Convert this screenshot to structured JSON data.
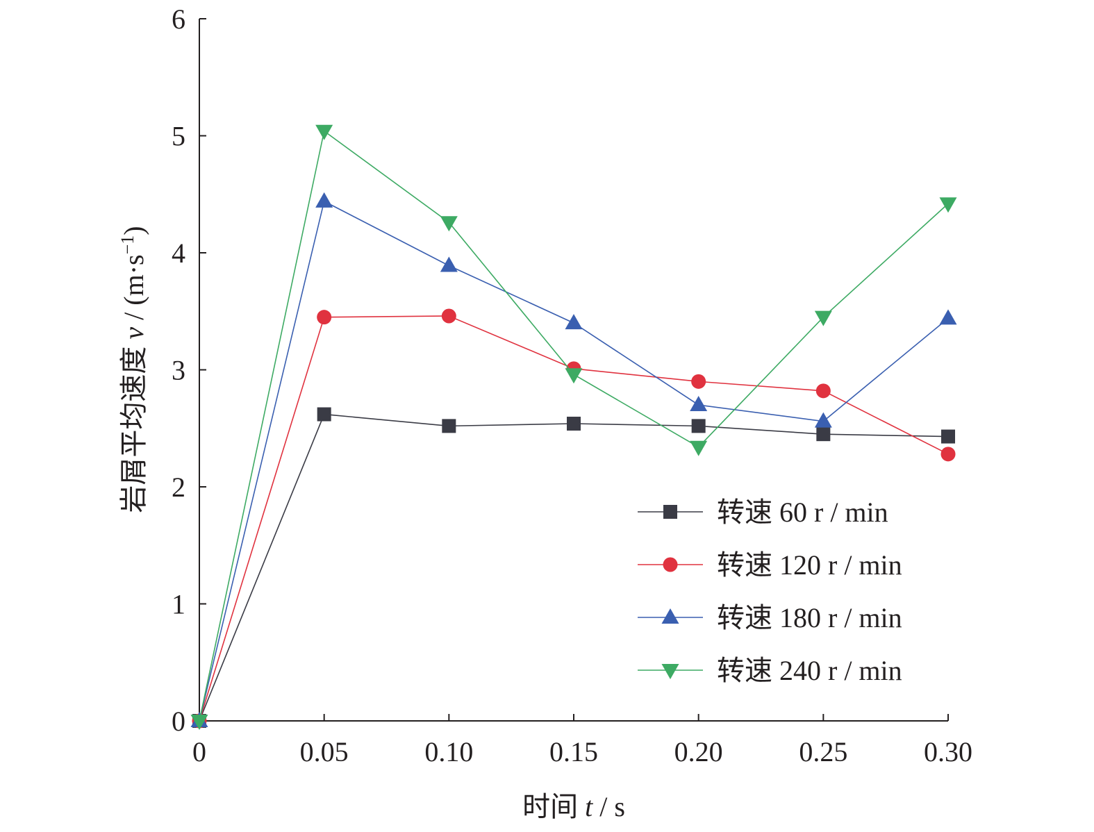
{
  "chart_data": {
    "type": "line",
    "title": "",
    "xlabel": {
      "prefix": "时间 ",
      "var": "t",
      "suffix": " / s"
    },
    "ylabel": {
      "prefix": "岩屑平均速度 ",
      "var": "v",
      "suffix": " / (m·s",
      "sup": "−1",
      "end": ")"
    },
    "xlim": [
      0,
      0.3
    ],
    "ylim": [
      0,
      6
    ],
    "x_ticks": [
      0,
      0.05,
      0.1,
      0.15,
      0.2,
      0.25,
      0.3
    ],
    "x_tick_labels": [
      "0",
      "0.05",
      "0.10",
      "0.15",
      "0.20",
      "0.25",
      "0.30"
    ],
    "y_ticks": [
      0,
      1,
      2,
      3,
      4,
      5,
      6
    ],
    "y_tick_labels": [
      "0",
      "1",
      "2",
      "3",
      "4",
      "5",
      "6"
    ],
    "grid": false,
    "legend_position": "bottom-right",
    "x": [
      0,
      0.05,
      0.1,
      0.15,
      0.2,
      0.25,
      0.3
    ],
    "series": [
      {
        "name": "转速 60 r / min",
        "marker": "square",
        "color": "#3a3b45",
        "values": [
          0,
          2.62,
          2.52,
          2.54,
          2.52,
          2.45,
          2.43
        ]
      },
      {
        "name": "转速 120 r / min",
        "marker": "circle",
        "color": "#e0323f",
        "values": [
          0,
          3.45,
          3.46,
          3.01,
          2.9,
          2.82,
          2.28
        ]
      },
      {
        "name": "转速 180 r / min",
        "marker": "triangle-up",
        "color": "#3a5fb0",
        "values": [
          0,
          4.44,
          3.89,
          3.4,
          2.7,
          2.56,
          3.44
        ]
      },
      {
        "name": "转速 240 r / min",
        "marker": "triangle-down",
        "color": "#3daa63",
        "values": [
          0,
          5.04,
          4.26,
          2.96,
          2.34,
          3.45,
          4.42
        ]
      }
    ]
  }
}
